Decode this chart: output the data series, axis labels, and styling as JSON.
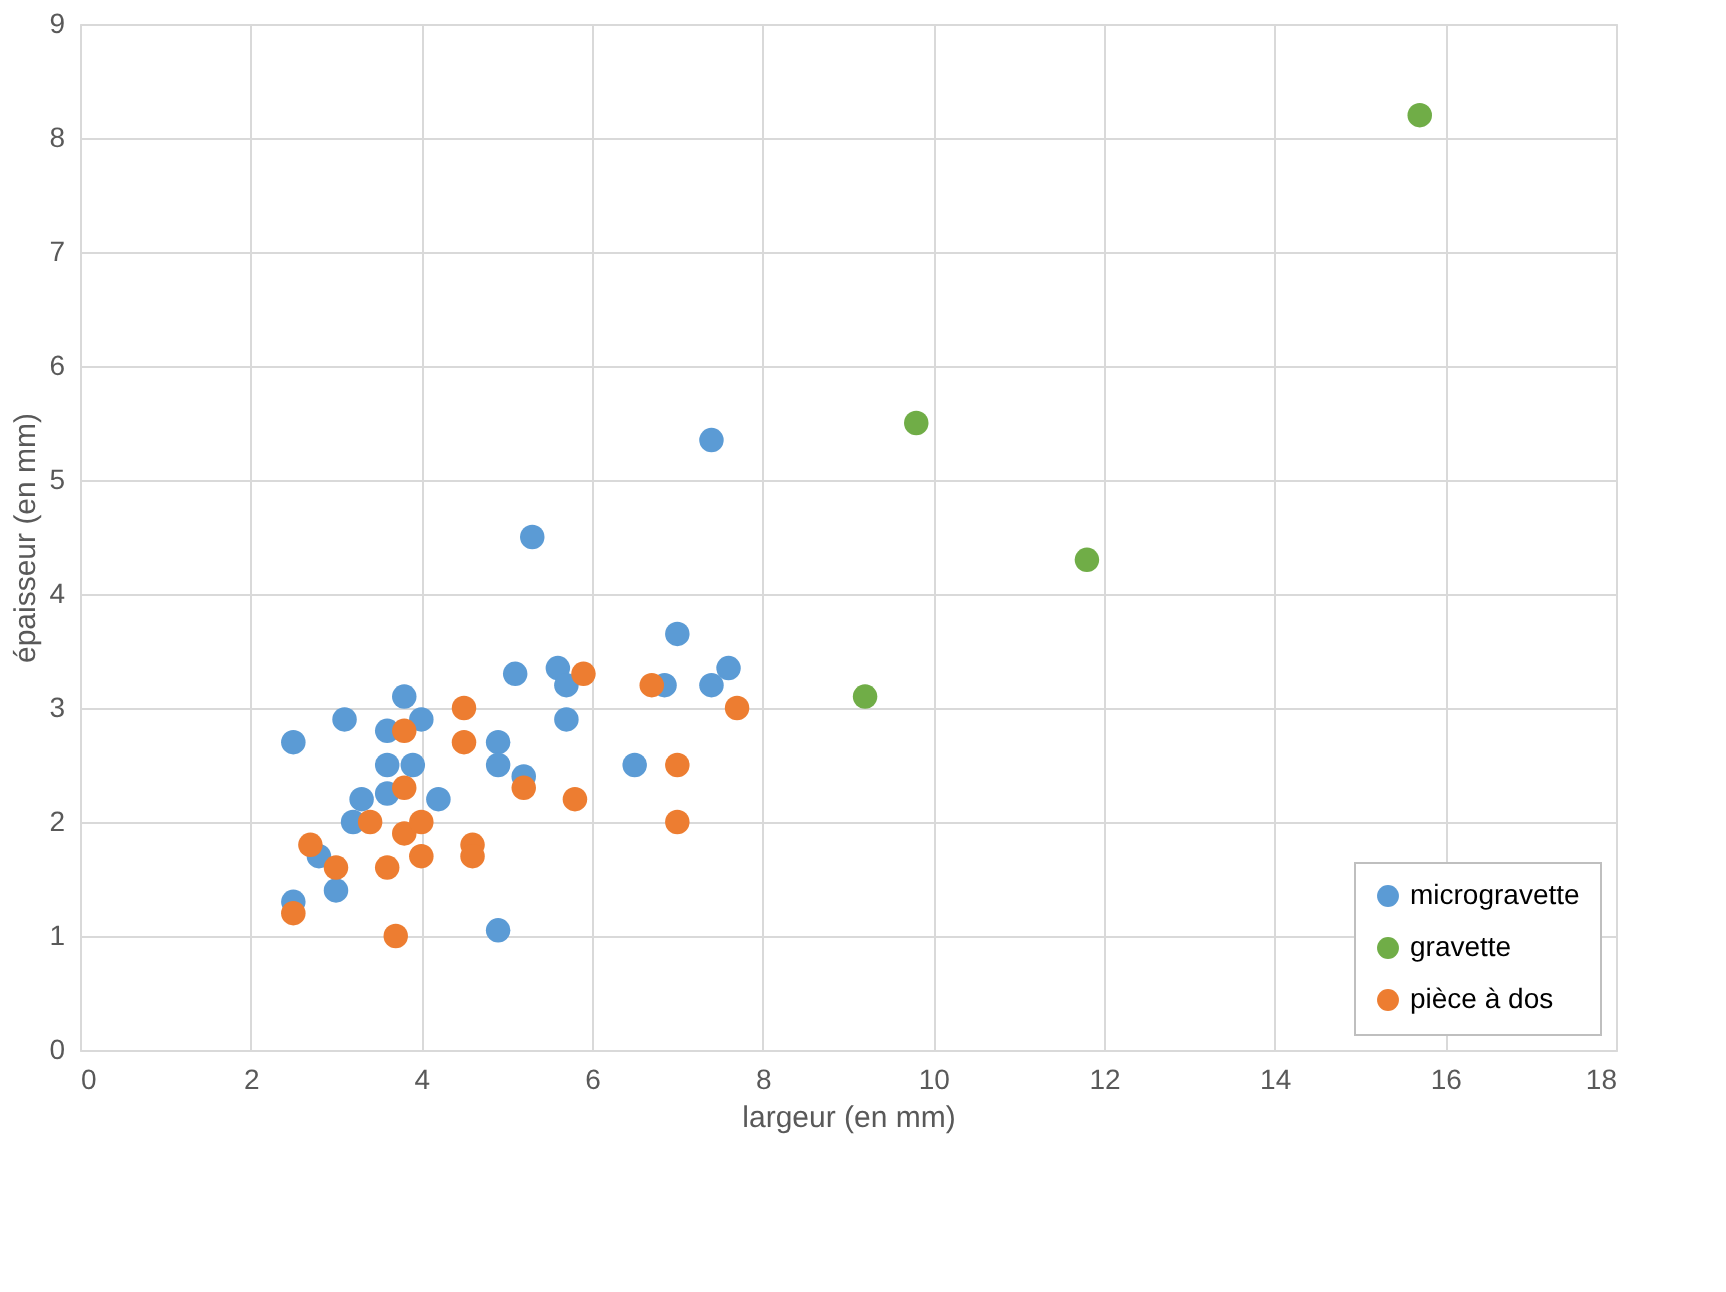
{
  "chart_data": {
    "type": "scatter",
    "xlabel": "largeur (en mm)",
    "ylabel": "épaisseur (en mm)",
    "xlim": [
      0,
      18
    ],
    "xticks": [
      0,
      2,
      4,
      6,
      8,
      10,
      12,
      14,
      16,
      18
    ],
    "ylim": [
      0,
      9
    ],
    "yticks": [
      0,
      1,
      2,
      3,
      4,
      5,
      6,
      7,
      8,
      9
    ],
    "grid": true,
    "legend": "bottom right",
    "marker": "circle",
    "series": [
      {
        "name": "microgravette",
        "color": "#5b9bd5",
        "x": [
          2.5,
          3.1,
          2.5,
          3.0,
          2.8,
          3.3,
          3.2,
          3.6,
          3.8,
          4.0,
          3.6,
          3.9,
          4.2,
          3.6,
          4.9,
          4.9,
          4.9,
          5.1,
          5.2,
          5.3,
          5.6,
          5.7,
          5.7,
          6.5,
          6.85,
          7.0,
          7.4,
          7.4,
          7.6
        ],
        "values": [
          2.7,
          2.9,
          1.3,
          1.4,
          1.7,
          2.2,
          2.0,
          2.8,
          3.1,
          2.9,
          2.5,
          2.5,
          2.2,
          2.25,
          2.7,
          2.5,
          1.05,
          3.3,
          2.4,
          4.5,
          3.35,
          3.2,
          2.9,
          2.5,
          3.2,
          3.65,
          5.35,
          3.2,
          3.35
        ]
      },
      {
        "name": "gravette",
        "color": "#70ad47",
        "x": [
          9.2,
          9.8,
          11.8,
          15.7
        ],
        "values": [
          3.1,
          5.5,
          4.3,
          8.2
        ]
      },
      {
        "name": "pièce à dos",
        "color": "#ed7d31",
        "x": [
          2.5,
          2.7,
          3.0,
          3.4,
          3.6,
          3.7,
          3.8,
          3.8,
          3.8,
          4.0,
          4.0,
          4.5,
          4.5,
          4.6,
          4.6,
          5.2,
          5.8,
          5.9,
          6.7,
          7.0,
          7.0,
          7.7
        ],
        "values": [
          1.2,
          1.8,
          1.6,
          2.0,
          1.6,
          1.0,
          2.8,
          2.3,
          1.9,
          2.0,
          1.7,
          3.0,
          2.7,
          1.8,
          1.7,
          2.3,
          2.2,
          3.3,
          3.2,
          2.5,
          2.0,
          3.0
        ]
      }
    ]
  }
}
